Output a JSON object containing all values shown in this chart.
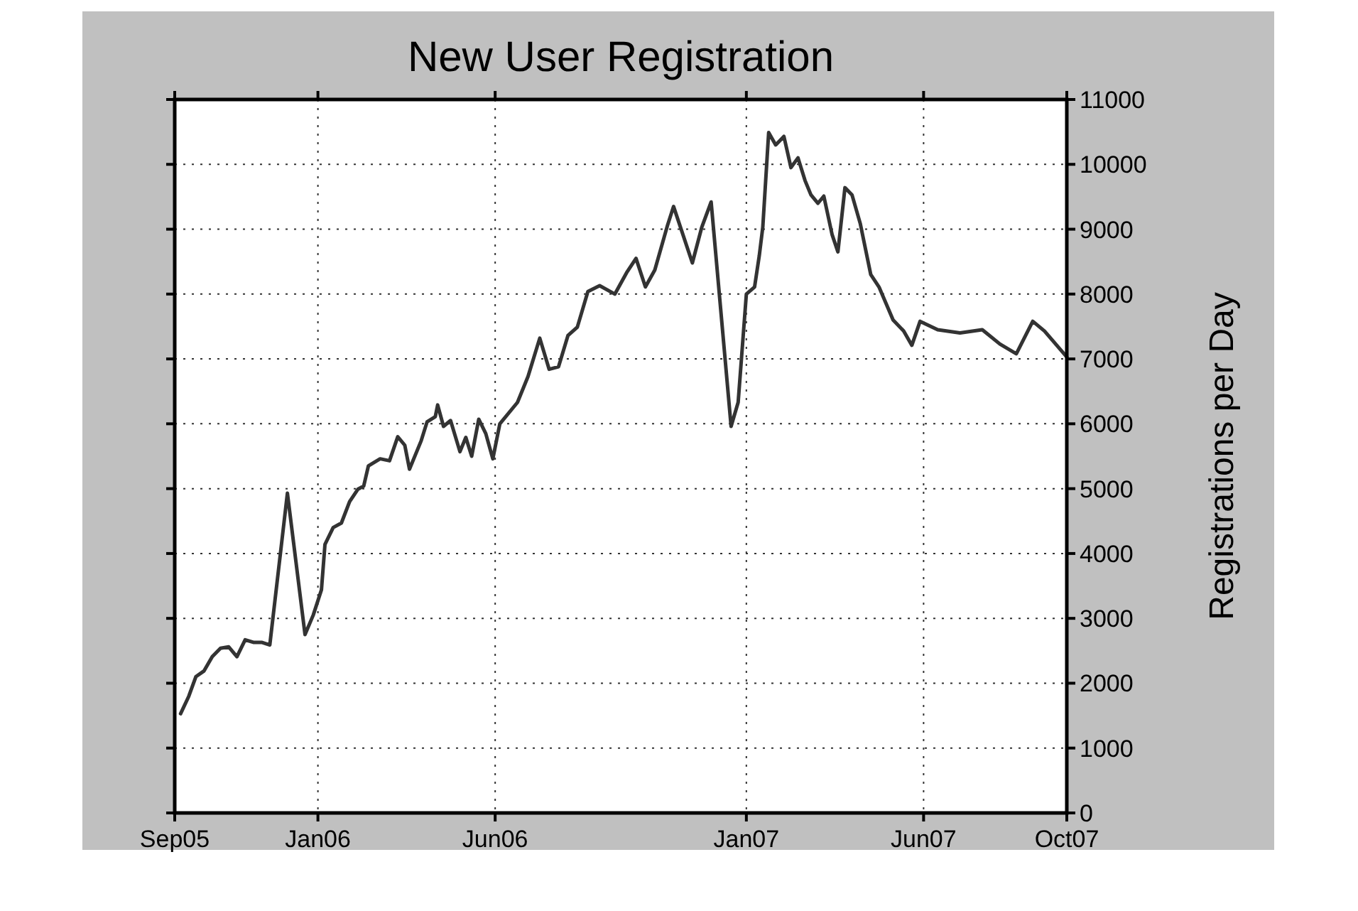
{
  "chart_data": {
    "type": "line",
    "title": "New User Registration",
    "ylabel": "Registrations per Day",
    "x": [
      "2005-09-06",
      "2005-09-13",
      "2005-09-19",
      "2005-09-26",
      "2005-10-03",
      "2005-10-10",
      "2005-10-17",
      "2005-10-24",
      "2005-10-31",
      "2005-11-07",
      "2005-11-14",
      "2005-11-21",
      "2005-12-06",
      "2005-12-21",
      "2005-12-28",
      "2006-01-04",
      "2006-01-07",
      "2006-01-14",
      "2006-01-21",
      "2006-01-28",
      "2006-02-04",
      "2006-02-09",
      "2006-02-13",
      "2006-02-23",
      "2006-03-03",
      "2006-03-10",
      "2006-03-16",
      "2006-03-20",
      "2006-03-30",
      "2006-04-04",
      "2006-04-11",
      "2006-04-13",
      "2006-04-18",
      "2006-04-24",
      "2006-05-02",
      "2006-05-07",
      "2006-05-12",
      "2006-05-18",
      "2006-05-24",
      "2006-05-30",
      "2006-06-05",
      "2006-06-20",
      "2006-06-29",
      "2006-07-09",
      "2006-07-17",
      "2006-07-25",
      "2006-08-02",
      "2006-08-10",
      "2006-08-19",
      "2006-08-29",
      "2006-09-11",
      "2006-09-21",
      "2006-09-29",
      "2006-10-07",
      "2006-10-15",
      "2006-10-26",
      "2006-10-31",
      "2006-11-16",
      "2006-11-24",
      "2006-12-02",
      "2006-12-19",
      "2006-12-25",
      "2007-01-01",
      "2007-01-08",
      "2007-01-12",
      "2007-01-15",
      "2007-01-20",
      "2007-01-26",
      "2007-02-02",
      "2007-02-08",
      "2007-02-14",
      "2007-02-20",
      "2007-02-25",
      "2007-03-03",
      "2007-03-08",
      "2007-03-15",
      "2007-03-20",
      "2007-03-26",
      "2007-04-01",
      "2007-04-08",
      "2007-04-17",
      "2007-04-24",
      "2007-05-06",
      "2007-05-15",
      "2007-05-22",
      "2007-05-29",
      "2007-06-13",
      "2007-07-02",
      "2007-07-21",
      "2007-08-05",
      "2007-08-19",
      "2007-09-02",
      "2007-09-12",
      "2007-10-01"
    ],
    "series": [
      {
        "color": "#333333",
        "values": [
          1530,
          1800,
          2100,
          2190,
          2410,
          2540,
          2560,
          2410,
          2670,
          2630,
          2630,
          2590,
          4930,
          2750,
          3050,
          3440,
          4140,
          4400,
          4470,
          4800,
          4990,
          5040,
          5350,
          5460,
          5430,
          5800,
          5670,
          5300,
          5740,
          6030,
          6110,
          6290,
          5960,
          6050,
          5570,
          5790,
          5500,
          6070,
          5850,
          5460,
          6000,
          6330,
          6730,
          7320,
          6840,
          6880,
          7360,
          7490,
          8040,
          8130,
          8000,
          8330,
          8550,
          8110,
          8370,
          9070,
          9350,
          8480,
          9030,
          9420,
          5960,
          6330,
          8000,
          8110,
          8590,
          9030,
          10490,
          10300,
          10430,
          9950,
          10100,
          9750,
          9530,
          9400,
          9510,
          8920,
          8650,
          9640,
          9530,
          9090,
          8300,
          8110,
          7600,
          7430,
          7210,
          7580,
          7450,
          7400,
          7450,
          7230,
          7080,
          7580,
          7430,
          7030
        ]
      }
    ],
    "xlim": [
      "2005-09-01",
      "2007-10-01"
    ],
    "xticks": [
      {
        "value": "2005-09-01",
        "label": "Sep05"
      },
      {
        "value": "2006-01-01",
        "label": "Jan06"
      },
      {
        "value": "2006-06-01",
        "label": "Jun06"
      },
      {
        "value": "2007-01-01",
        "label": "Jan07"
      },
      {
        "value": "2007-06-01",
        "label": "Jun07"
      },
      {
        "value": "2007-10-01",
        "label": "Oct07"
      }
    ],
    "ylim": [
      0,
      11000
    ],
    "yticks": [
      0,
      1000,
      2000,
      3000,
      4000,
      5000,
      6000,
      7000,
      8000,
      9000,
      10000,
      11000
    ],
    "grid": true,
    "marker": "none",
    "line_style": "solid"
  }
}
